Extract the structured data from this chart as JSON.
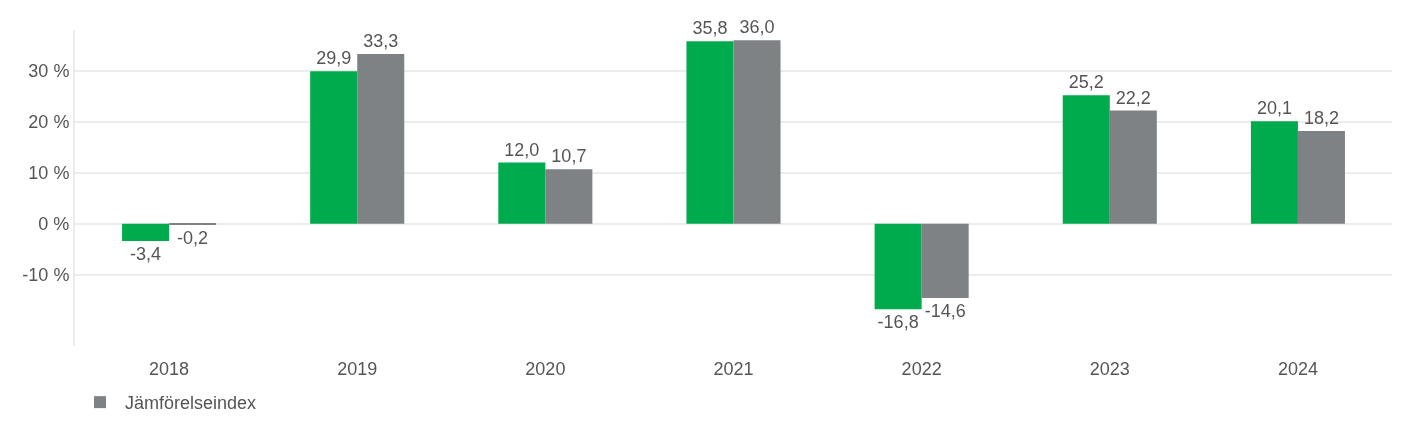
{
  "chart_data": {
    "type": "bar",
    "categories": [
      "2018",
      "2019",
      "2020",
      "2021",
      "2022",
      "2023",
      "2024"
    ],
    "series": [
      {
        "color": "#00ab4e",
        "values": [
          -3.4,
          29.9,
          12.0,
          35.8,
          -16.8,
          25.2,
          20.1
        ],
        "value_labels": [
          "-3,4",
          "29,9",
          "12,0",
          "35,8",
          "-16,8",
          "25,2",
          "20,1"
        ]
      },
      {
        "name": "Jämförelseindex",
        "color": "#7e8285",
        "values": [
          -0.2,
          33.3,
          10.7,
          36.0,
          -14.6,
          22.2,
          18.2
        ],
        "value_labels": [
          "-0,2",
          "33,3",
          "10,7",
          "36,0",
          "-14,6",
          "22,2",
          "18,2"
        ]
      }
    ],
    "ylim": [
      -24,
      38
    ],
    "yticks": [
      {
        "value": -10,
        "label": "-10 %"
      },
      {
        "value": 0,
        "label": "0 %"
      },
      {
        "value": 10,
        "label": "10 %"
      },
      {
        "value": 20,
        "label": "20 %"
      },
      {
        "value": 30,
        "label": "30 %"
      }
    ],
    "grid": "y",
    "legend": "bottom left"
  }
}
